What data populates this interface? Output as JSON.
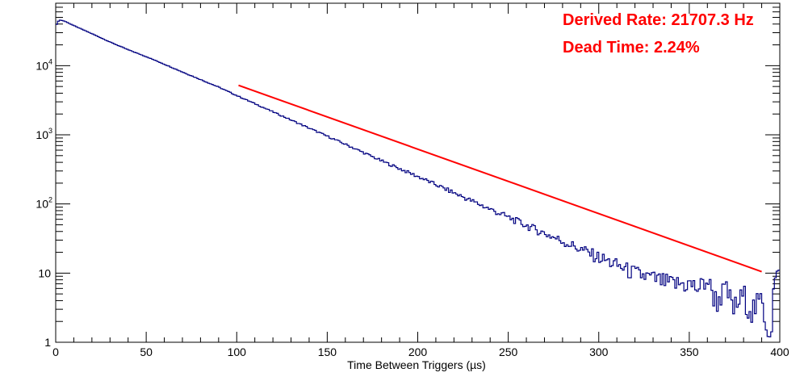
{
  "chart_data": {
    "type": "line",
    "xlabel": "Time Between Triggers (µs)",
    "ylabel": "",
    "title": "",
    "xlim": [
      0,
      400
    ],
    "ylim": [
      1,
      80000
    ],
    "yscale": "log",
    "grid": false,
    "x_ticks": [
      "0",
      "50",
      "100",
      "150",
      "200",
      "250",
      "300",
      "350",
      "400"
    ],
    "y_ticks": [
      {
        "value": 1,
        "label": "1"
      },
      {
        "value": 10,
        "label": "10"
      },
      {
        "value": 100,
        "label": "10",
        "exp": "2"
      },
      {
        "value": 1000,
        "label": "10",
        "exp": "3"
      },
      {
        "value": 10000,
        "label": "10",
        "exp": "4"
      }
    ],
    "series": [
      {
        "style": "histogram",
        "color": "#000080",
        "x": [
          0,
          2,
          5,
          10,
          20,
          30,
          40,
          50,
          60,
          70,
          80,
          90,
          100,
          120,
          140,
          160,
          180,
          200,
          220,
          240,
          260,
          280,
          300,
          320,
          340,
          350,
          355,
          360,
          365,
          370,
          375,
          380,
          385,
          390,
          393,
          395,
          397,
          400
        ],
        "values": [
          38000,
          46000,
          44000,
          38000,
          29000,
          22000,
          17000,
          13500,
          10500,
          8100,
          6300,
          4900,
          3700,
          2150,
          1250,
          730,
          420,
          250,
          145,
          84,
          49,
          29,
          17,
          10,
          7,
          7,
          6,
          8,
          4,
          6,
          3,
          5,
          3,
          4,
          2,
          1.5,
          8,
          10
        ]
      },
      {
        "style": "fit",
        "color": "#ff0000",
        "x": [
          101,
          390
        ],
        "values": [
          5200,
          10.5
        ]
      }
    ]
  },
  "annotations": {
    "rate": "Derived Rate: 21707.3 Hz",
    "dead_time": "Dead Time: 2.24%"
  }
}
